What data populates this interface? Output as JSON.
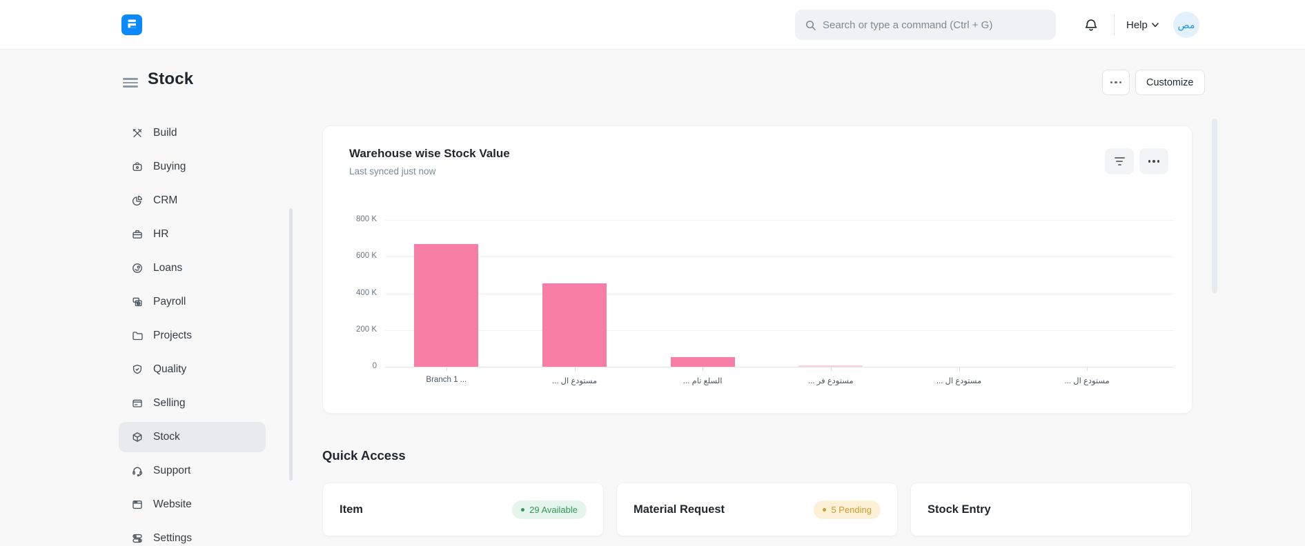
{
  "navbar": {
    "search_placeholder": "Search or type a command (Ctrl + G)",
    "help_label": "Help",
    "avatar_text": "مص"
  },
  "page": {
    "title": "Stock",
    "customize_button": "Customize"
  },
  "sidebar": {
    "items": [
      {
        "label": "Build",
        "icon": "tools-icon",
        "active": false
      },
      {
        "label": "Buying",
        "icon": "bag-icon",
        "active": false
      },
      {
        "label": "CRM",
        "icon": "pie-chart-icon",
        "active": false
      },
      {
        "label": "HR",
        "icon": "briefcase-icon",
        "active": false
      },
      {
        "label": "Loans",
        "icon": "loan-coin-icon",
        "active": false
      },
      {
        "label": "Payroll",
        "icon": "payroll-icon",
        "active": false
      },
      {
        "label": "Projects",
        "icon": "folder-icon",
        "active": false
      },
      {
        "label": "Quality",
        "icon": "shield-check-icon",
        "active": false
      },
      {
        "label": "Selling",
        "icon": "sell-card-icon",
        "active": false
      },
      {
        "label": "Stock",
        "icon": "cube-icon",
        "active": true
      },
      {
        "label": "Support",
        "icon": "headset-icon",
        "active": false
      },
      {
        "label": "Website",
        "icon": "browser-icon",
        "active": false
      },
      {
        "label": "Settings",
        "icon": "toggles-icon",
        "active": false
      }
    ]
  },
  "chart_card": {
    "title": "Warehouse wise Stock Value",
    "subtitle": "Last synced just now"
  },
  "chart_data": {
    "type": "bar",
    "title": "Warehouse wise Stock Value",
    "categories": [
      "Branch 1 ...",
      "... مستودع ال",
      "... السلع تام",
      "... مستودع فر",
      "... مستودع ال",
      "... مستودع ال"
    ],
    "values": [
      668000,
      455000,
      52000,
      9000,
      0,
      0
    ],
    "muted_indices": [
      3
    ],
    "ylim": [
      0,
      800000
    ],
    "ytick_labels": [
      "800 K",
      "600 K",
      "400 K",
      "200 K",
      "0"
    ],
    "xlabel": "",
    "ylabel": "",
    "grid": true,
    "legend": false,
    "bar_color": "#F77EA4",
    "muted_bar_color": "#FAD0DE"
  },
  "quick_access": {
    "heading": "Quick Access",
    "cards": [
      {
        "title": "Item",
        "badge": "29 Available",
        "badge_color": "green"
      },
      {
        "title": "Material Request",
        "badge": "5 Pending",
        "badge_color": "yellow"
      },
      {
        "title": "Stock Entry",
        "badge": null,
        "badge_color": null
      }
    ]
  },
  "colors": {
    "accent_blue": "#0A89FF",
    "bar_pink": "#F77EA4",
    "muted_bar_pink": "#FAD0DE",
    "badge_green_text": "#2F9A55",
    "badge_green_bg": "#E6F5EB",
    "badge_yellow_text": "#CF9B2A",
    "badge_yellow_bg": "#FCF1D7"
  }
}
